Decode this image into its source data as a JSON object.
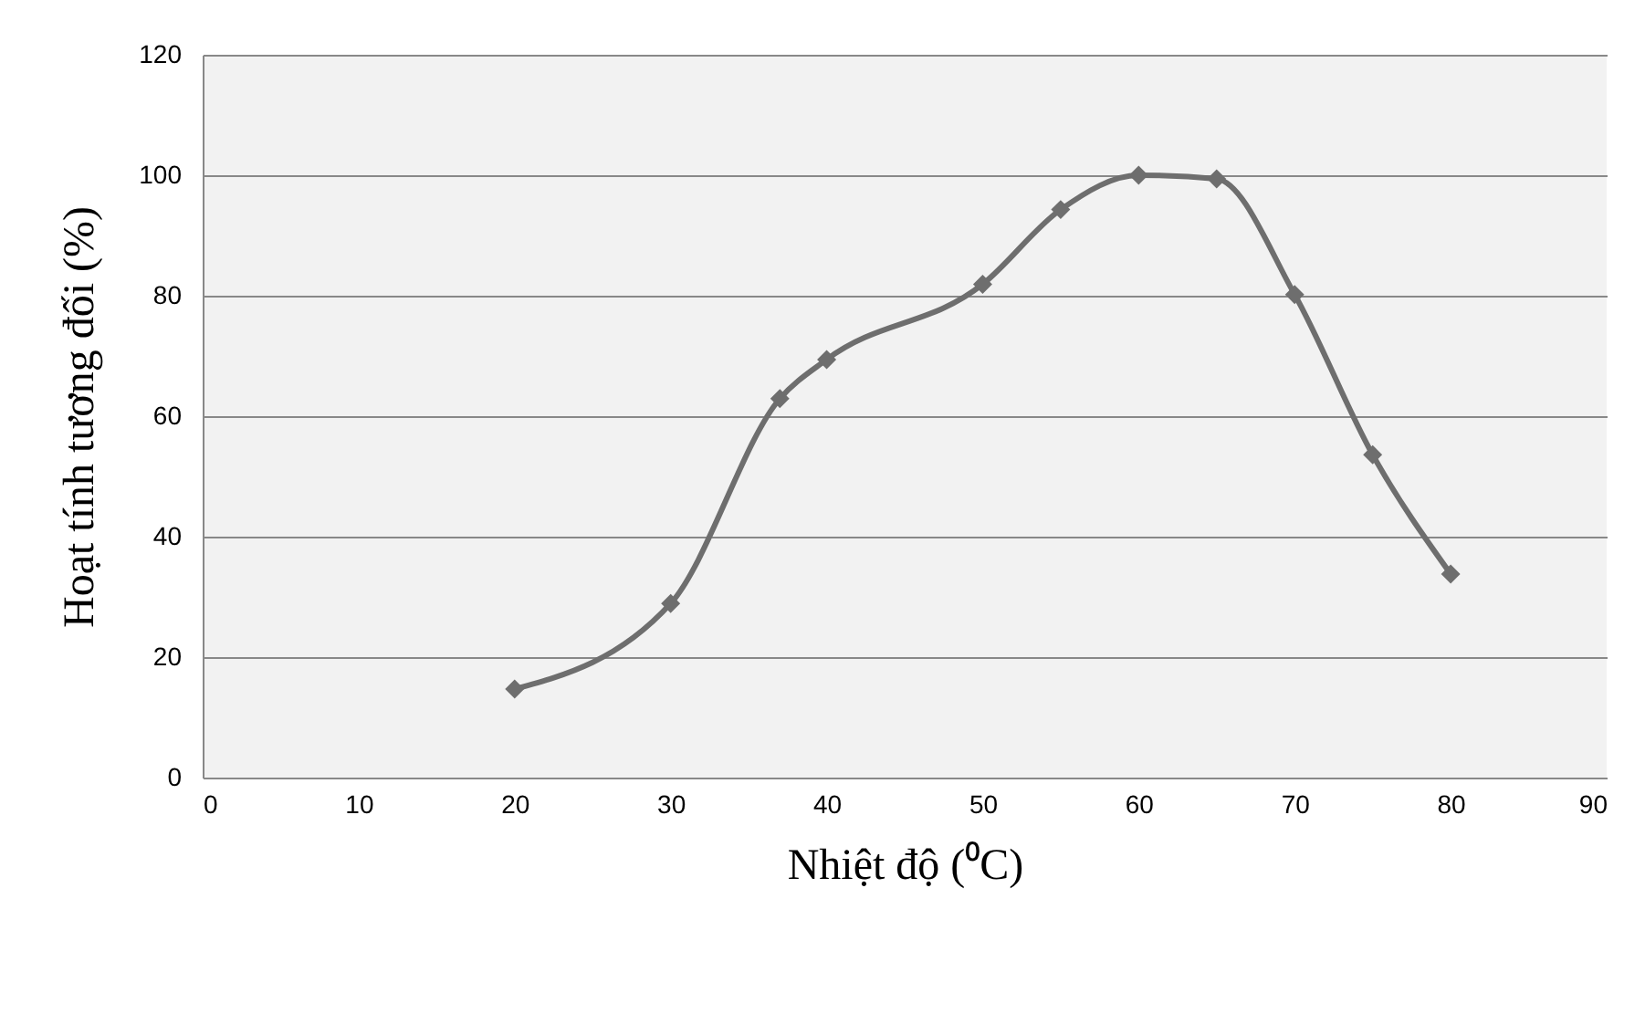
{
  "chart_data": {
    "type": "line",
    "xlabel": "Nhiệt độ (⁰C)",
    "ylabel": "Hoạt tính tương đối (%)",
    "x": [
      20,
      30,
      37,
      40,
      50,
      55,
      60,
      65,
      70,
      75,
      80
    ],
    "series": [
      {
        "color": "#6e6e6e",
        "values": [
          14.7,
          28.9,
          62.9,
          69.4,
          81.9,
          94.3,
          100,
          99.4,
          80.2,
          53.6,
          33.8
        ]
      }
    ],
    "xlim": [
      0,
      90
    ],
    "xticks": [
      0,
      10,
      20,
      30,
      40,
      50,
      60,
      70,
      80,
      90
    ],
    "ylim": [
      0,
      120
    ],
    "yticks": [
      0,
      20,
      40,
      60,
      80,
      100,
      120
    ],
    "grid": "y",
    "marker": "diamond",
    "line_style": "solid"
  }
}
